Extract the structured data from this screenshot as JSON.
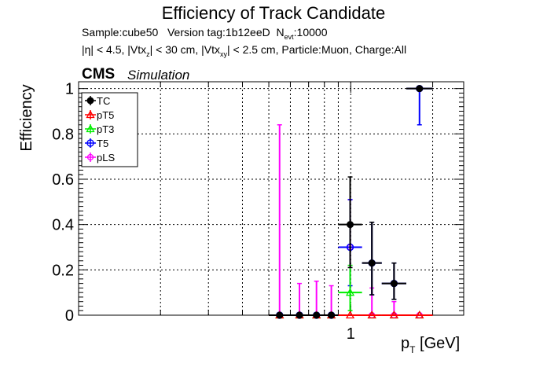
{
  "header": {
    "title": "Efficiency of Track Candidate",
    "sample_label": "Sample:cube50",
    "version_label": "Version tag:1b12eeD",
    "nevt_label": "N",
    "nevt_sub": "evt",
    "nevt_value": ":10000",
    "cuts_eta": "|η| < 4.5, |Vtx",
    "cuts_z_sub": "z",
    "cuts_z": "| < 30 cm, |Vtx",
    "cuts_xy_sub": "xy",
    "cuts_rest": "| < 2.5 cm, Particle:Muon, Charge:All",
    "cms": "CMS",
    "simulation": "Simulation"
  },
  "colors": {
    "TC": "#000000",
    "pT5": "#ff0000",
    "pT3": "#00ee00",
    "T5": "#0000ff",
    "pLS": "#ff00ff"
  },
  "chart_data": {
    "type": "scatter",
    "title": "Efficiency of Track Candidate",
    "xlabel": "p",
    "xlabel_sub": "T",
    "xlabel_unit": " [GeV]",
    "ylabel": "Efficiency",
    "x_scale": "log",
    "xlim": [
      0.1,
      2.6
    ],
    "ylim": [
      0,
      1.03
    ],
    "grid": true,
    "legend_position": "top-left",
    "x_ticks": [
      {
        "value": 1,
        "label": "1"
      }
    ],
    "y_ticks": [
      {
        "value": 0,
        "label": "0"
      },
      {
        "value": 0.2,
        "label": "0.2"
      },
      {
        "value": 0.4,
        "label": "0.4"
      },
      {
        "value": 0.6,
        "label": "0.6"
      },
      {
        "value": 0.8,
        "label": "0.8"
      },
      {
        "value": 1,
        "label": "1"
      }
    ],
    "bins": [
      {
        "lo": 0.5,
        "hi": 0.6
      },
      {
        "lo": 0.6,
        "hi": 0.7
      },
      {
        "lo": 0.7,
        "hi": 0.8
      },
      {
        "lo": 0.8,
        "hi": 0.9
      },
      {
        "lo": 0.9,
        "hi": 1.1
      },
      {
        "lo": 1.1,
        "hi": 1.3
      },
      {
        "lo": 1.3,
        "hi": 1.6
      },
      {
        "lo": 1.6,
        "hi": 2.0
      }
    ],
    "series": [
      {
        "name": "TC",
        "marker": "filled-circle",
        "values": [
          0,
          0,
          0,
          0,
          0.4,
          0.23,
          0.14,
          1.0
        ],
        "err_up": [
          0,
          0,
          0,
          0,
          0.21,
          0.18,
          0.09,
          0
        ],
        "err_down": [
          0,
          0,
          0,
          0,
          0.19,
          0.14,
          0.07,
          0
        ]
      },
      {
        "name": "pT5",
        "marker": "open-triangle",
        "values": [
          0,
          0,
          0,
          0,
          0,
          0,
          0,
          0
        ],
        "err_up": [
          0,
          0,
          0,
          0,
          0,
          0,
          0,
          0
        ],
        "err_down": [
          0,
          0,
          0,
          0,
          0,
          0,
          0,
          0
        ]
      },
      {
        "name": "pT3",
        "marker": "open-triangle",
        "values": [
          0,
          0,
          0,
          0,
          0.1,
          0,
          0,
          0
        ],
        "err_up": [
          0,
          0,
          0,
          0,
          0.12,
          0,
          0,
          0
        ],
        "err_down": [
          0,
          0,
          0,
          0,
          0.08,
          0,
          0,
          0
        ]
      },
      {
        "name": "T5",
        "marker": "open-circle",
        "values": [
          0,
          0,
          0,
          0,
          0.3,
          0.23,
          0.14,
          1.0
        ],
        "err_up": [
          0,
          0,
          0,
          0,
          0.21,
          0.18,
          0.09,
          0
        ],
        "err_down": [
          0,
          0,
          0,
          0,
          0.17,
          0.14,
          0.07,
          0.16
        ]
      },
      {
        "name": "pLS",
        "marker": "open-star",
        "values": [
          0,
          0,
          0,
          0,
          0.3,
          0,
          0,
          0
        ],
        "err_up": [
          0.84,
          0.14,
          0.15,
          0.13,
          0.21,
          0.12,
          0.06,
          0
        ],
        "err_down": [
          0,
          0,
          0,
          0,
          0.2,
          0,
          0,
          0.84
        ]
      }
    ]
  }
}
